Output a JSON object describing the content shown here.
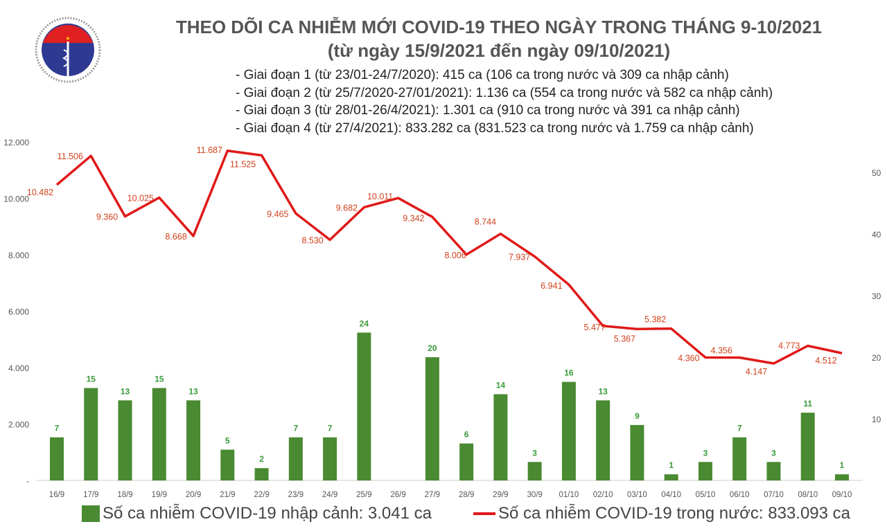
{
  "logo": {
    "text_top": "BỘ Y TẾ",
    "text_bottom": "MINISTRY OF HEALTH"
  },
  "title": "THEO DÕI CA NHIỄM MỚI COVID-19 THEO NGÀY TRONG THÁNG 9-10/2021",
  "subtitle": "(từ ngày 15/9/2021 đến ngày 09/10/2021)",
  "phases": [
    "- Giai đoạn 1 (từ 23/01-24/7/2020): 415 ca (106 ca trong nước và 309 ca nhập cảnh)",
    "- Giai đoạn 2 (từ 25/7/2020-27/01/2021): 1.136 ca (554 ca trong nước và 582 ca nhập cảnh)",
    "- Giai đoạn 3 (từ 28/01-26/4/2021): 1.301 ca (910 ca trong nước và 391 ca nhập cảnh)",
    "- Giai đoạn 4 (từ 27/4/2021): 833.282 ca (831.523 ca trong nước và 1.759 ca nhập cảnh)"
  ],
  "chart_data": {
    "type": "bar+line",
    "categories": [
      "16/9",
      "17/9",
      "18/9",
      "19/9",
      "20/9",
      "21/9",
      "22/9",
      "23/9",
      "24/9",
      "25/9",
      "26/9",
      "27/9",
      "28/9",
      "29/9",
      "30/9",
      "01/10",
      "02/10",
      "03/10",
      "04/10",
      "05/10",
      "06/10",
      "07/10",
      "08/10",
      "09/10"
    ],
    "series": [
      {
        "name": "Số ca nhiễm COVID-19 nhập cảnh: 3.041 ca",
        "type": "bar",
        "axis": "right",
        "color": "#4a8a32",
        "values": [
          7,
          15,
          13,
          15,
          13,
          5,
          2,
          7,
          7,
          24,
          0,
          20,
          6,
          14,
          3,
          16,
          13,
          9,
          1,
          3,
          7,
          3,
          11,
          1
        ]
      },
      {
        "name": "Số ca nhiễm COVID-19 trong nước: 833.093 ca",
        "type": "line",
        "axis": "left",
        "color": "#e01818",
        "values": [
          10482,
          11506,
          9360,
          10025,
          8668,
          11687,
          11525,
          9465,
          8530,
          9682,
          10011,
          9342,
          8006,
          8744,
          7937,
          6941,
          5477,
          5367,
          5382,
          4360,
          4356,
          4147,
          4773,
          4512
        ]
      }
    ],
    "left_axis": {
      "ylim": [
        0,
        12000
      ],
      "ticks": [
        "-",
        "2.000",
        "4.000",
        "6.000",
        "8.000",
        "10.000",
        "12.000"
      ]
    },
    "right_axis": {
      "ylim": [
        0,
        55
      ],
      "ticks": [
        "10",
        "20",
        "30",
        "40",
        "50"
      ]
    },
    "grid": false,
    "legend": "bottom"
  }
}
